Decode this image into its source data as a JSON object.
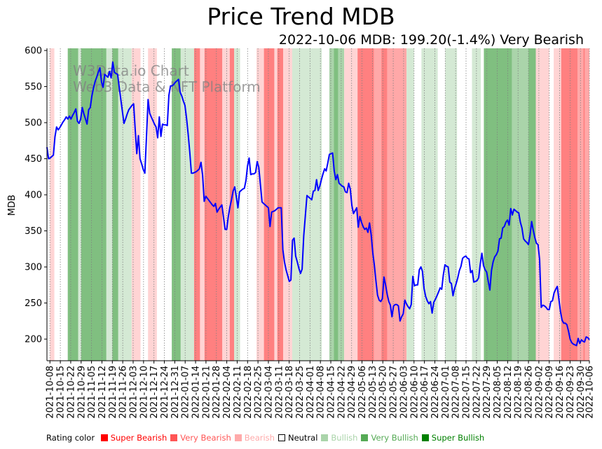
{
  "chart_data": {
    "type": "line",
    "title": "Price Trend MDB",
    "subtitle": "2022-10-06 MDB: 199.20(-1.4%) Very Bearish",
    "ylabel": "MDB",
    "xlabel": "",
    "ylim": [
      170,
      603
    ],
    "yticks": [
      200,
      250,
      300,
      350,
      400,
      450,
      500,
      550,
      600
    ],
    "x_start": "2021-10-06",
    "x_end": "2022-10-06",
    "xtick_labels": [
      "2021-10-08",
      "2021-10-15",
      "2021-10-22",
      "2021-10-29",
      "2021-11-05",
      "2021-11-12",
      "2021-11-19",
      "2021-11-26",
      "2021-12-03",
      "2021-12-10",
      "2021-12-17",
      "2021-12-24",
      "2021-12-31",
      "2022-01-07",
      "2022-01-14",
      "2022-01-21",
      "2022-01-28",
      "2022-02-04",
      "2022-02-11",
      "2022-02-18",
      "2022-02-25",
      "2022-03-04",
      "2022-03-11",
      "2022-03-18",
      "2022-03-25",
      "2022-04-01",
      "2022-04-08",
      "2022-04-15",
      "2022-04-22",
      "2022-04-29",
      "2022-05-06",
      "2022-05-13",
      "2022-05-20",
      "2022-05-27",
      "2022-06-03",
      "2022-06-10",
      "2022-06-17",
      "2022-06-24",
      "2022-07-01",
      "2022-07-08",
      "2022-07-15",
      "2022-07-22",
      "2022-07-29",
      "2022-08-05",
      "2022-08-12",
      "2022-08-19",
      "2022-08-26",
      "2022-09-02",
      "2022-09-09",
      "2022-09-16",
      "2022-09-23",
      "2022-09-30",
      "2022-10-06"
    ],
    "grid": "vertical-dotted",
    "line_color": "#0000ff",
    "series": [
      {
        "name": "MDB",
        "values": [
          466,
          450,
          451,
          453,
          455,
          480,
          494,
          490,
          493,
          497,
          501,
          504,
          508,
          505,
          509,
          505,
          510,
          514,
          519,
          502,
          499,
          505,
          521,
          512,
          505,
          498,
          518,
          521,
          537,
          548,
          557,
          563,
          570,
          576,
          556,
          549,
          567,
          565,
          563,
          571,
          562,
          584,
          570,
          568,
          567,
          550,
          533,
          516,
          499,
          505,
          512,
          518,
          521,
          524,
          526,
          491,
          457,
          482,
          450,
          443,
          435,
          430,
          480,
          532,
          513,
          508,
          503,
          498,
          494,
          479,
          508,
          481,
          498,
          497,
          497,
          496,
          538,
          551,
          551,
          553,
          556,
          558,
          560,
          542,
          537,
          530,
          524,
          506,
          484,
          459,
          430,
          430,
          431,
          432,
          434,
          436,
          445,
          427,
          391,
          398,
          395,
          392,
          389,
          386,
          384,
          388,
          376,
          380,
          383,
          386,
          369,
          352,
          352,
          370,
          383,
          393,
          405,
          411,
          397,
          382,
          404,
          406,
          408,
          409,
          420,
          440,
          451,
          428,
          429,
          429,
          431,
          446,
          438,
          414,
          390,
          388,
          386,
          384,
          382,
          356,
          376,
          377,
          378,
          380,
          382,
          382,
          382,
          324,
          307,
          296,
          288,
          280,
          282,
          337,
          340,
          315,
          307,
          298,
          291,
          297,
          343,
          371,
          399,
          397,
          395,
          393,
          405,
          406,
          421,
          406,
          412,
          421,
          429,
          436,
          433,
          444,
          456,
          457,
          458,
          433,
          421,
          428,
          416,
          414,
          412,
          411,
          404,
          403,
          416,
          408,
          385,
          374,
          378,
          382,
          355,
          370,
          362,
          356,
          352,
          354,
          348,
          361,
          345,
          320,
          303,
          281,
          261,
          254,
          252,
          256,
          286,
          275,
          262,
          252,
          247,
          231,
          246,
          248,
          248,
          246,
          225,
          231,
          235,
          254,
          249,
          245,
          242,
          248,
          287,
          274,
          275,
          275,
          296,
          300,
          294,
          270,
          259,
          253,
          249,
          252,
          236,
          251,
          255,
          260,
          265,
          271,
          269,
          289,
          303,
          301,
          300,
          279,
          277,
          260,
          270,
          277,
          285,
          295,
          301,
          312,
          314,
          315,
          312,
          311,
          292,
          295,
          279,
          280,
          281,
          285,
          304,
          319,
          302,
          296,
          293,
          280,
          268,
          295,
          307,
          314,
          317,
          322,
          339,
          340,
          354,
          356,
          362,
          365,
          358,
          381,
          372,
          380,
          378,
          376,
          375,
          362,
          354,
          339,
          336,
          334,
          331,
          344,
          363,
          351,
          341,
          333,
          331,
          310,
          244,
          247,
          246,
          244,
          241,
          241,
          252,
          253,
          264,
          269,
          273,
          255,
          238,
          226,
          222,
          222,
          220,
          211,
          200,
          195,
          193,
          192,
          191,
          201,
          194,
          199,
          197,
          196,
          203,
          202,
          199
        ]
      }
    ],
    "rating_bands": [
      [
        "2021-10-06",
        "2021-10-08",
        "neutral"
      ],
      [
        "2021-10-08",
        "2021-10-11",
        "bearish"
      ],
      [
        "2021-10-11",
        "2021-10-20",
        "neutral"
      ],
      [
        "2021-10-20",
        "2021-10-27",
        "very_bullish"
      ],
      [
        "2021-10-27",
        "2021-10-29",
        "bullish"
      ],
      [
        "2021-10-29",
        "2021-11-15",
        "very_bullish"
      ],
      [
        "2021-11-15",
        "2021-11-19",
        "bullish"
      ],
      [
        "2021-11-19",
        "2021-11-23",
        "very_bullish"
      ],
      [
        "2021-11-23",
        "2021-12-02",
        "bullish"
      ],
      [
        "2021-12-02",
        "2021-12-08",
        "bearish"
      ],
      [
        "2021-12-08",
        "2021-12-13",
        "neutral"
      ],
      [
        "2021-12-13",
        "2021-12-19",
        "bearish"
      ],
      [
        "2021-12-19",
        "2021-12-29",
        "neutral"
      ],
      [
        "2021-12-29",
        "2022-01-04",
        "very_bullish"
      ],
      [
        "2022-01-04",
        "2022-01-13",
        "bullish"
      ],
      [
        "2022-01-13",
        "2022-01-17",
        "very_bearish"
      ],
      [
        "2022-01-17",
        "2022-01-20",
        "bearish"
      ],
      [
        "2022-01-20",
        "2022-02-01",
        "very_bearish"
      ],
      [
        "2022-02-01",
        "2022-02-06",
        "bearish"
      ],
      [
        "2022-02-06",
        "2022-02-09",
        "very_bearish"
      ],
      [
        "2022-02-09",
        "2022-02-13",
        "bullish_light"
      ],
      [
        "2022-02-13",
        "2022-02-24",
        "neutral"
      ],
      [
        "2022-02-24",
        "2022-02-29",
        "bearish"
      ],
      [
        "2022-02-29",
        "2022-03-08",
        "very_bearish"
      ],
      [
        "2022-03-08",
        "2022-03-10",
        "bearish"
      ],
      [
        "2022-03-10",
        "2022-03-14",
        "very_bearish"
      ],
      [
        "2022-03-14",
        "2022-03-20",
        "bearish"
      ],
      [
        "2022-03-20",
        "2022-04-09",
        "bullish"
      ],
      [
        "2022-04-09",
        "2022-04-14",
        "neutral"
      ],
      [
        "2022-04-14",
        "2022-04-17",
        "bullish_mid"
      ],
      [
        "2022-04-17",
        "2022-04-20",
        "very_bullish"
      ],
      [
        "2022-04-20",
        "2022-04-24",
        "bullish_mid"
      ],
      [
        "2022-04-24",
        "2022-05-03",
        "bearish"
      ],
      [
        "2022-05-03",
        "2022-05-14",
        "very_bearish"
      ],
      [
        "2022-05-14",
        "2022-05-19",
        "bearish_mid"
      ],
      [
        "2022-05-19",
        "2022-05-23",
        "very_bearish"
      ],
      [
        "2022-05-23",
        "2022-06-05",
        "bearish_mid"
      ],
      [
        "2022-06-05",
        "2022-06-10",
        "bullish"
      ],
      [
        "2022-06-10",
        "2022-06-15",
        "neutral"
      ],
      [
        "2022-06-15",
        "2022-06-26",
        "bullish"
      ],
      [
        "2022-06-26",
        "2022-07-01",
        "neutral"
      ],
      [
        "2022-07-01",
        "2022-07-09",
        "bullish"
      ],
      [
        "2022-07-09",
        "2022-07-19",
        "neutral"
      ],
      [
        "2022-07-19",
        "2022-07-25",
        "bullish"
      ],
      [
        "2022-07-25",
        "2022-07-27",
        "neutral"
      ],
      [
        "2022-07-27",
        "2022-08-15",
        "very_bullish"
      ],
      [
        "2022-08-15",
        "2022-08-26",
        "bullish_mid"
      ],
      [
        "2022-08-26",
        "2022-08-31",
        "very_bullish"
      ],
      [
        "2022-08-31",
        "2022-09-09",
        "bearish"
      ],
      [
        "2022-09-09",
        "2022-09-12",
        "neutral"
      ],
      [
        "2022-09-12",
        "2022-09-17",
        "bearish"
      ],
      [
        "2022-09-17",
        "2022-09-28",
        "very_bearish"
      ],
      [
        "2022-09-28",
        "2022-10-02",
        "bearish_mid"
      ],
      [
        "2022-10-02",
        "2022-10-03",
        "very_bearish"
      ],
      [
        "2022-10-03",
        "2022-10-06",
        "bearish_mid"
      ]
    ],
    "band_colors": {
      "neutral": "#ffffff",
      "bearish": "#ffd4d4",
      "bearish_mid": "#ffa8a8",
      "very_bearish": "#ff8080",
      "bullish_light": "#d4e9d4",
      "bullish": "#d4e9d4",
      "bullish_mid": "#aad4aa",
      "very_bullish": "#80bf80"
    },
    "watermark": [
      "W3Data.io Chart",
      "Web3 Data & NFT Platform"
    ],
    "legend": {
      "title": "Rating color",
      "placement": "bottom",
      "items": [
        {
          "label": "Super Bearish",
          "color": "#ff0000"
        },
        {
          "label": "Very Bearish",
          "color": "#ff5555"
        },
        {
          "label": "Bearish",
          "color": "#ffaaaa"
        },
        {
          "label": "Neutral",
          "color": "#ffffff",
          "text_color": "#000000"
        },
        {
          "label": "Bullish",
          "color": "#aad4aa"
        },
        {
          "label": "Very Bullish",
          "color": "#55aa55"
        },
        {
          "label": "Super Bullish",
          "color": "#008000"
        }
      ]
    }
  }
}
